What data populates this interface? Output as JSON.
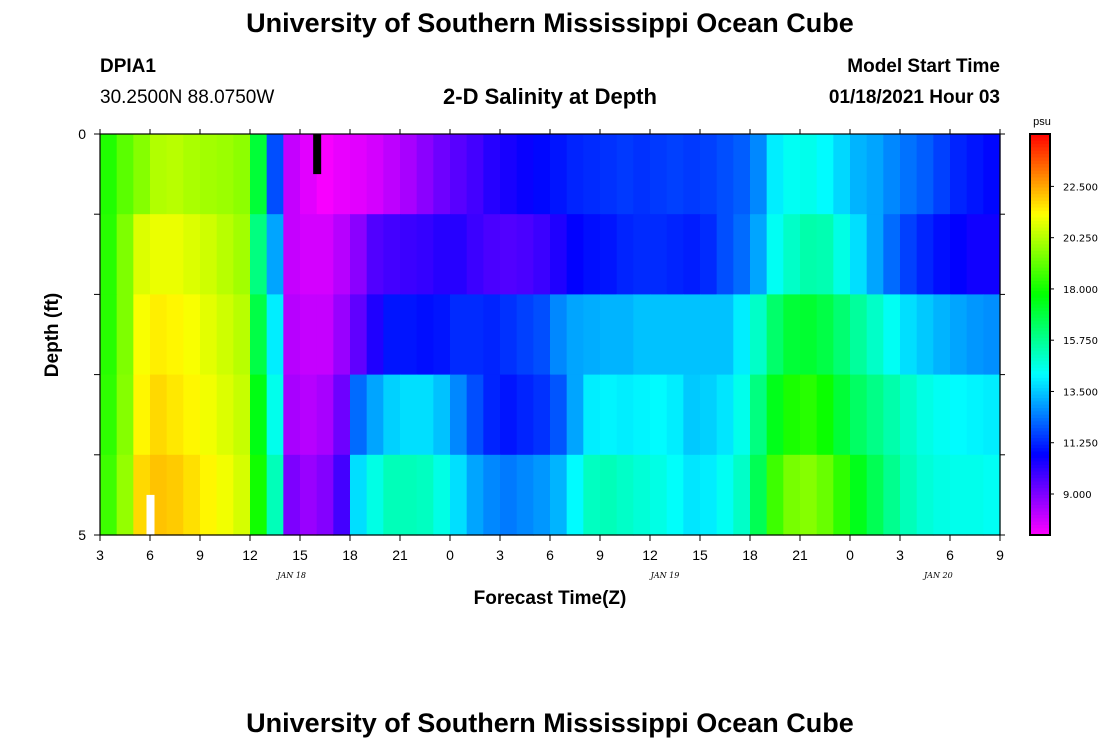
{
  "page": {
    "title": "University of Southern Mississippi Ocean Cube",
    "footer_title": "University of Southern Mississippi Ocean Cube",
    "station": "DPIA1",
    "coordinates": "30.2500N 88.0750W",
    "plot_title": "2-D Salinity at Depth",
    "model_start_label": "Model Start Time",
    "model_start_value": "01/18/2021 Hour 03"
  },
  "chart_data": {
    "type": "heatmap",
    "title": "2-D Salinity at Depth",
    "xlabel": "Forecast Time(Z)",
    "ylabel": "Depth (ft)",
    "x_hours": [
      3,
      4,
      5,
      6,
      7,
      8,
      9,
      10,
      11,
      12,
      13,
      14,
      15,
      16,
      17,
      18,
      19,
      20,
      21,
      22,
      23,
      24,
      25,
      26,
      27,
      28,
      29,
      30,
      31,
      32,
      33,
      34,
      35,
      36,
      37,
      38,
      39,
      40,
      41,
      42,
      43,
      44,
      45,
      46,
      47,
      48,
      49,
      50,
      51,
      52,
      53,
      54,
      55,
      56,
      57
    ],
    "x_ticks": [
      {
        "hour": 3,
        "label": "3"
      },
      {
        "hour": 6,
        "label": "6"
      },
      {
        "hour": 9,
        "label": "9"
      },
      {
        "hour": 12,
        "label": "12"
      },
      {
        "hour": 15,
        "label": "15"
      },
      {
        "hour": 18,
        "label": "18"
      },
      {
        "hour": 21,
        "label": "21"
      },
      {
        "hour": 24,
        "label": "0"
      },
      {
        "hour": 27,
        "label": "3"
      },
      {
        "hour": 30,
        "label": "6"
      },
      {
        "hour": 33,
        "label": "9"
      },
      {
        "hour": 36,
        "label": "12"
      },
      {
        "hour": 39,
        "label": "15"
      },
      {
        "hour": 42,
        "label": "18"
      },
      {
        "hour": 45,
        "label": "21"
      },
      {
        "hour": 48,
        "label": "0"
      },
      {
        "hour": 51,
        "label": "3"
      },
      {
        "hour": 54,
        "label": "6"
      },
      {
        "hour": 57,
        "label": "9"
      }
    ],
    "date_labels": [
      {
        "hour": 14.5,
        "label": "JAN 18"
      },
      {
        "hour": 36.9,
        "label": "JAN 19"
      },
      {
        "hour": 53.3,
        "label": "JAN 20"
      }
    ],
    "xlim": [
      3,
      57
    ],
    "y_ticks": [
      {
        "depth": 0,
        "label": "0"
      },
      {
        "depth": 5,
        "label": "5"
      }
    ],
    "ylim": [
      0,
      5
    ],
    "depth_layers": [
      0,
      1,
      2,
      3,
      4,
      5
    ],
    "layer_values": [
      [
        18.2,
        19.0,
        19.6,
        20.2,
        20.3,
        20.1,
        20.0,
        19.9,
        19.7,
        17.0,
        11.8,
        8.0,
        7.6,
        7.3,
        7.5,
        7.6,
        7.8,
        8.1,
        8.4,
        8.8,
        9.2,
        9.5,
        9.8,
        10.2,
        10.4,
        10.6,
        10.8,
        11.0,
        11.2,
        11.3,
        11.4,
        11.5,
        11.4,
        11.5,
        11.6,
        11.5,
        11.6,
        11.8,
        12.0,
        12.6,
        14.0,
        14.4,
        14.5,
        14.2,
        13.7,
        13.2,
        13.0,
        12.6,
        12.3,
        12.0,
        11.6,
        11.2,
        11.0,
        10.8,
        10.6
      ],
      [
        18.3,
        19.5,
        20.8,
        21.0,
        21.0,
        20.8,
        20.6,
        20.3,
        20.0,
        16.0,
        13.0,
        8.0,
        7.8,
        7.8,
        8.2,
        8.8,
        9.6,
        9.8,
        9.9,
        10.0,
        10.2,
        10.2,
        9.9,
        9.7,
        9.6,
        9.7,
        9.9,
        10.3,
        10.7,
        10.9,
        11.0,
        11.2,
        11.3,
        11.3,
        11.2,
        11.1,
        11.3,
        11.8,
        12.2,
        13.0,
        14.4,
        15.0,
        15.4,
        15.3,
        14.6,
        13.8,
        13.0,
        12.2,
        11.6,
        11.2,
        10.9,
        10.7,
        10.5,
        10.5,
        10.5
      ],
      [
        18.3,
        19.5,
        21.2,
        21.5,
        21.4,
        21.2,
        20.9,
        20.6,
        20.3,
        16.8,
        14.0,
        8.2,
        8.0,
        8.0,
        8.6,
        9.4,
        10.3,
        11.0,
        11.0,
        10.9,
        11.0,
        11.3,
        11.3,
        11.2,
        11.4,
        11.6,
        11.8,
        12.6,
        13.0,
        13.1,
        13.2,
        13.2,
        13.4,
        13.4,
        13.4,
        13.4,
        13.4,
        13.4,
        14.0,
        15.0,
        16.3,
        17.0,
        17.1,
        16.8,
        16.2,
        15.6,
        15.0,
        14.4,
        13.8,
        13.5,
        13.2,
        13.0,
        12.8,
        12.7,
        12.6
      ],
      [
        18.4,
        19.6,
        21.4,
        21.8,
        21.6,
        21.4,
        21.1,
        20.8,
        20.5,
        17.5,
        14.5,
        8.4,
        8.2,
        8.4,
        9.2,
        12.2,
        13.0,
        13.6,
        13.8,
        13.8,
        13.4,
        12.6,
        11.8,
        11.2,
        11.0,
        11.2,
        11.4,
        11.9,
        13.0,
        14.0,
        14.1,
        14.0,
        14.1,
        14.2,
        14.0,
        13.5,
        13.6,
        13.9,
        14.5,
        16.0,
        17.4,
        18.1,
        18.3,
        17.9,
        17.0,
        16.4,
        15.9,
        15.4,
        15.0,
        14.6,
        14.4,
        14.2,
        14.1,
        14.0,
        13.9
      ],
      [
        18.6,
        19.8,
        21.8,
        22.1,
        22.0,
        21.7,
        21.4,
        21.1,
        20.7,
        18.0,
        15.2,
        9.0,
        8.6,
        8.9,
        9.8,
        13.8,
        14.6,
        15.2,
        15.2,
        15.1,
        14.6,
        13.8,
        13.0,
        12.6,
        12.4,
        12.6,
        12.8,
        13.2,
        14.2,
        15.1,
        15.2,
        15.0,
        14.8,
        14.6,
        14.3,
        13.9,
        14.0,
        14.4,
        15.0,
        16.6,
        18.6,
        19.4,
        19.6,
        19.2,
        18.4,
        17.4,
        16.6,
        15.8,
        15.2,
        14.8,
        14.6,
        14.5,
        14.5,
        14.4,
        14.3
      ],
      [
        18.8,
        20.0,
        22.0,
        22.5,
        22.3,
        22.0,
        21.6,
        21.2,
        20.9,
        18.4,
        15.8,
        10.2,
        9.2,
        9.4,
        10.4,
        16.8,
        17.2,
        17.4,
        17.4,
        17.3,
        17.2,
        15.0,
        13.2,
        12.8,
        12.7,
        12.9,
        13.2,
        13.8,
        16.4,
        17.4,
        17.6,
        16.2,
        15.0,
        14.6,
        14.2,
        13.8,
        13.9,
        14.5,
        15.0,
        18.8,
        20.0,
        20.3,
        20.3,
        20.2,
        19.5,
        17.4,
        16.4,
        15.9,
        15.4,
        15.1,
        14.9,
        14.8,
        14.8,
        14.8,
        14.7
      ]
    ],
    "colorbar": {
      "unit": "psu",
      "min": 7.2,
      "max": 24.8,
      "ticks": [
        9.0,
        11.25,
        13.5,
        15.75,
        18.0,
        20.25,
        22.5
      ],
      "tick_labels": [
        "9.000",
        "11.250",
        "13.500",
        "15.750",
        "18.000",
        "20.250",
        "22.500"
      ]
    },
    "markers": [
      {
        "hour": 16,
        "depth_from": 0,
        "depth_to": 0.5,
        "color": "#000000"
      },
      {
        "hour": 6,
        "depth_from": 4.5,
        "depth_to": 5,
        "color": "#ffffff"
      }
    ],
    "grid": false
  }
}
